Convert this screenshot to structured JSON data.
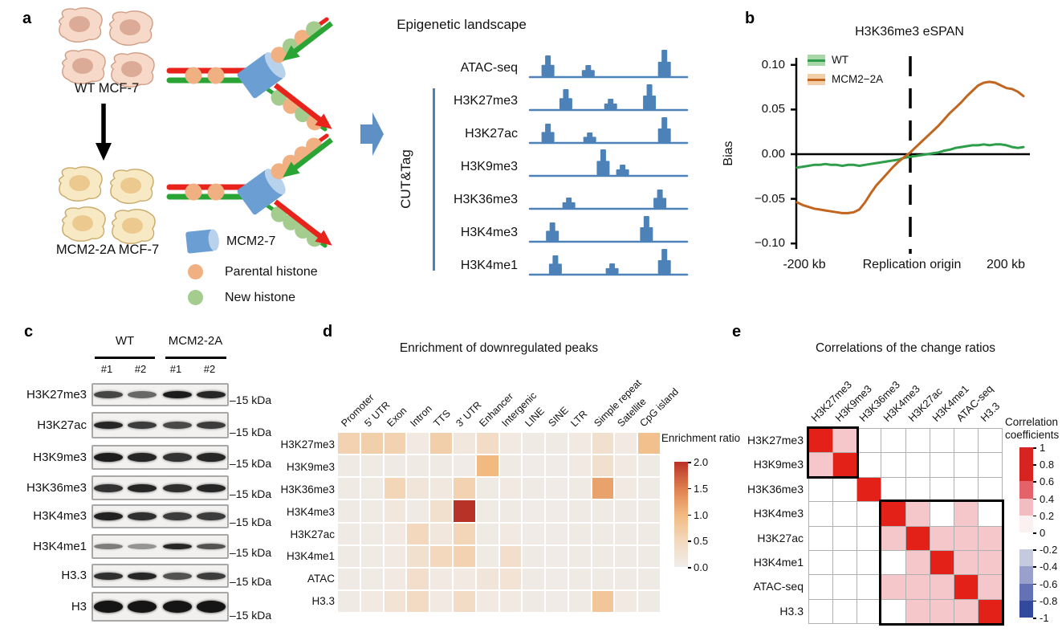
{
  "panel_a": {
    "label": "a",
    "wt_label": "WT MCF-7",
    "mut_label": "MCM2-2A MCF-7",
    "landscape_title": "Epigenetic landscape",
    "cuttag_label": "CUT&Tag",
    "legend": {
      "mcm": "MCM2-7",
      "parental": "Parental histone",
      "new": "New histone"
    },
    "colors": {
      "track_blue": "#4d82b8",
      "parental": "#f0b081",
      "new_histone": "#a3cc8e",
      "mcm": "#6b9fd4",
      "mcm_cap": "#b9d2ec",
      "red_strand": "#e8231c",
      "green_strand": "#2aa435",
      "wt_cell_fill": "#f6d9c8",
      "wt_cell_edge": "#cf9d84",
      "wt_nucleus": "#dcab98",
      "mut_cell_fill": "#f7e9c4",
      "mut_cell_edge": "#c9a96a",
      "mut_nucleus": "#ecc98e",
      "block_arrow": "#5e90c6"
    },
    "tracks": [
      {
        "name": "ATAC-seq",
        "peaks": [
          [
            0.1,
            26
          ],
          [
            0.37,
            14
          ],
          [
            0.88,
            33
          ]
        ]
      },
      {
        "name": "H3K27me3",
        "peaks": [
          [
            0.22,
            25
          ],
          [
            0.52,
            13
          ],
          [
            0.78,
            31
          ]
        ]
      },
      {
        "name": "H3K27ac",
        "peaks": [
          [
            0.1,
            23
          ],
          [
            0.38,
            12
          ],
          [
            0.88,
            31
          ]
        ]
      },
      {
        "name": "H3K9me3",
        "peaks": [
          [
            0.47,
            32
          ],
          [
            0.6,
            13
          ]
        ]
      },
      {
        "name": "H3K36me3",
        "peaks": [
          [
            0.24,
            13
          ],
          [
            0.85,
            23
          ]
        ]
      },
      {
        "name": "H3K4me3",
        "peaks": [
          [
            0.13,
            23
          ],
          [
            0.76,
            31
          ]
        ]
      },
      {
        "name": "H3K4me1",
        "peaks": [
          [
            0.15,
            23
          ],
          [
            0.53,
            13
          ],
          [
            0.88,
            31
          ]
        ]
      }
    ],
    "forks": [
      {
        "top": [
          "parental",
          "new",
          "parental",
          "new"
        ],
        "bottom": [
          "new",
          "parental",
          "new",
          "parental"
        ]
      },
      {
        "top": [
          "parental",
          "parental",
          "parental",
          "parental"
        ],
        "bottom": [
          "new",
          "new",
          "new",
          "new"
        ]
      }
    ]
  },
  "panel_b": {
    "label": "b"
  },
  "panel_c": {
    "label": "c",
    "groups": [
      "WT",
      "MCM2-2A"
    ],
    "lanes": [
      "#1",
      "#2",
      "#1",
      "#2"
    ],
    "size_marker": "–15 kDa",
    "rows": [
      {
        "name": "H3K27me3",
        "bands": [
          0.78,
          0.62,
          0.97,
          0.92
        ],
        "band_h": 9
      },
      {
        "name": "H3K27ac",
        "bands": [
          0.92,
          0.82,
          0.76,
          0.82
        ],
        "band_h": 9
      },
      {
        "name": "H3K9me3",
        "bands": [
          0.96,
          0.92,
          0.86,
          0.92
        ],
        "band_h": 11
      },
      {
        "name": "H3K36me3",
        "bands": [
          0.86,
          0.92,
          0.88,
          0.92
        ],
        "band_h": 10
      },
      {
        "name": "H3K4me3",
        "bands": [
          0.94,
          0.88,
          0.82,
          0.82
        ],
        "band_h": 10
      },
      {
        "name": "H3K4me1",
        "bands": [
          0.52,
          0.42,
          0.92,
          0.72
        ],
        "band_h": 7
      },
      {
        "name": "H3.3",
        "bands": [
          0.88,
          0.92,
          0.72,
          0.82
        ],
        "band_h": 9
      },
      {
        "name": "H3",
        "bands": [
          1,
          1,
          1,
          1
        ],
        "band_h": 15
      }
    ]
  },
  "panel_d": {
    "label": "d"
  },
  "panel_e": {
    "label": "e"
  },
  "chart_data": [
    {
      "id": "b",
      "type": "line",
      "title": "H3K36me3 eSPAN",
      "ylabel": "Bias",
      "ylim": [
        -0.1,
        0.1
      ],
      "y_ticks": [
        "0.10",
        "0.05",
        "0.00",
        "−0.05",
        "−0.10"
      ],
      "y_tick_values": [
        0.1,
        0.05,
        0.0,
        -0.05,
        -0.1
      ],
      "x_labels": [
        "-200 kb",
        "Replication origin",
        "200 kb"
      ],
      "vline_x": 0,
      "x": [
        -200,
        -190,
        -180,
        -170,
        -160,
        -150,
        -140,
        -130,
        -120,
        -110,
        -100,
        -90,
        -80,
        -70,
        -60,
        -50,
        -40,
        -30,
        -20,
        -10,
        0,
        10,
        20,
        30,
        40,
        50,
        60,
        70,
        80,
        90,
        100,
        110,
        120,
        130,
        140,
        150,
        160,
        170,
        180,
        190,
        200
      ],
      "series": [
        {
          "name": "WT",
          "color": "#2e9e4a",
          "fill": "#a9d8a8",
          "values": [
            -0.015,
            -0.014,
            -0.013,
            -0.012,
            -0.012,
            -0.011,
            -0.012,
            -0.012,
            -0.013,
            -0.012,
            -0.012,
            -0.013,
            -0.012,
            -0.011,
            -0.01,
            -0.009,
            -0.008,
            -0.007,
            -0.006,
            -0.004,
            -0.003,
            -0.002,
            -0.001,
            0.0,
            0.001,
            0.002,
            0.004,
            0.005,
            0.007,
            0.008,
            0.009,
            0.01,
            0.01,
            0.011,
            0.01,
            0.011,
            0.011,
            0.01,
            0.008,
            0.007,
            0.008
          ]
        },
        {
          "name": "MCM2−2A",
          "color": "#c2661f",
          "fill": "#f2cfa6",
          "values": [
            -0.054,
            -0.057,
            -0.059,
            -0.061,
            -0.062,
            -0.063,
            -0.064,
            -0.065,
            -0.066,
            -0.066,
            -0.065,
            -0.062,
            -0.054,
            -0.044,
            -0.035,
            -0.028,
            -0.021,
            -0.014,
            -0.008,
            -0.003,
            0.002,
            0.008,
            0.014,
            0.02,
            0.026,
            0.032,
            0.039,
            0.046,
            0.052,
            0.058,
            0.065,
            0.071,
            0.077,
            0.08,
            0.081,
            0.08,
            0.077,
            0.074,
            0.073,
            0.07,
            0.065
          ]
        }
      ]
    },
    {
      "id": "d",
      "type": "heatmap",
      "title": "Enrichment of downregulated peaks",
      "columns": [
        "Promoter",
        "5' UTR",
        "Exon",
        "Intron",
        "TTS",
        "3' UTR",
        "Enhancer",
        "Intergenic",
        "LINE",
        "SINE",
        "LTR",
        "Simple repeat",
        "Satellite",
        "CpG island"
      ],
      "rows": [
        "H3K27me3",
        "H3K9me3",
        "H3K36me3",
        "H3K4me3",
        "H3K27ac",
        "H3K4me1",
        "ATAC",
        "H3.3"
      ],
      "values": [
        [
          0.6,
          0.65,
          0.6,
          0.1,
          0.65,
          0.15,
          0.4,
          0.1,
          0.08,
          0.08,
          0.1,
          0.3,
          0.1,
          0.9
        ],
        [
          0.08,
          0.08,
          0.08,
          0.08,
          0.08,
          0.05,
          1.0,
          0.08,
          0.05,
          0.05,
          0.1,
          0.3,
          0.1,
          0.08
        ],
        [
          0.08,
          0.08,
          0.55,
          0.18,
          0.12,
          0.6,
          0.08,
          0.1,
          0.08,
          0.05,
          0.08,
          1.2,
          0.1,
          0.08
        ],
        [
          0.08,
          0.08,
          0.15,
          0.08,
          0.3,
          2.0,
          0.08,
          0.08,
          0.05,
          0.05,
          0.08,
          0.08,
          0.08,
          0.08
        ],
        [
          0.08,
          0.08,
          0.1,
          0.5,
          0.15,
          0.55,
          0.08,
          0.1,
          0.05,
          0.05,
          0.08,
          0.08,
          0.08,
          0.08
        ],
        [
          0.08,
          0.08,
          0.1,
          0.3,
          0.5,
          0.6,
          0.08,
          0.35,
          0.08,
          0.05,
          0.08,
          0.08,
          0.08,
          0.08
        ],
        [
          0.08,
          0.08,
          0.1,
          0.35,
          0.1,
          0.1,
          0.2,
          0.25,
          0.08,
          0.05,
          0.08,
          0.08,
          0.08,
          0.08
        ],
        [
          0.08,
          0.1,
          0.25,
          0.45,
          0.1,
          0.4,
          0.1,
          0.1,
          0.08,
          0.05,
          0.08,
          0.8,
          0.1,
          0.08
        ]
      ],
      "colorbar": {
        "title": "Enrichment ratio",
        "ticks": [
          "2.0",
          "1.5",
          "1.0",
          "0.5",
          "0.0"
        ],
        "range": [
          0,
          2
        ]
      }
    },
    {
      "id": "e",
      "type": "heatmap",
      "title": "Correlations of the change ratios",
      "labels": [
        "H3K27me3",
        "H3K9me3",
        "H3K36me3",
        "H3K4me3",
        "H3K27ac",
        "H3K4me1",
        "ATAC-seq",
        "H3.3"
      ],
      "values": [
        [
          1,
          0.3,
          0,
          0,
          0,
          0,
          0,
          0
        ],
        [
          0.3,
          1,
          0,
          0,
          0,
          0,
          0,
          0
        ],
        [
          0,
          0,
          1,
          0,
          0,
          0,
          0,
          0
        ],
        [
          0,
          0,
          0,
          1,
          0.3,
          0,
          0.3,
          0
        ],
        [
          0,
          0,
          0,
          0.3,
          1,
          0.3,
          0.3,
          0.3
        ],
        [
          0,
          0,
          0,
          0,
          0.3,
          1,
          0.3,
          0.3
        ],
        [
          0,
          0,
          0,
          0.3,
          0.3,
          0.3,
          1,
          0.3
        ],
        [
          0,
          0,
          0,
          0,
          0.3,
          0.3,
          0.3,
          1
        ]
      ],
      "highlight_boxes": [
        [
          0,
          0,
          1,
          1
        ],
        [
          3,
          3,
          7,
          7
        ]
      ],
      "colorbar": {
        "title": "Correlation coefficients",
        "ticks": [
          "1",
          "0.8",
          "0.6",
          "0.4",
          "0.2",
          "0",
          "-0.2",
          "-0.4",
          "-0.6",
          "-0.8",
          "-1"
        ],
        "range": [
          -1,
          1
        ],
        "band_colors": [
          "#d82421",
          "#d82421",
          "#e4636b",
          "#f2bcc1",
          "#fbf1f1",
          "#ffffff",
          "#c6cade",
          "#98a0cb",
          "#6372b5",
          "#32499e"
        ]
      }
    }
  ]
}
